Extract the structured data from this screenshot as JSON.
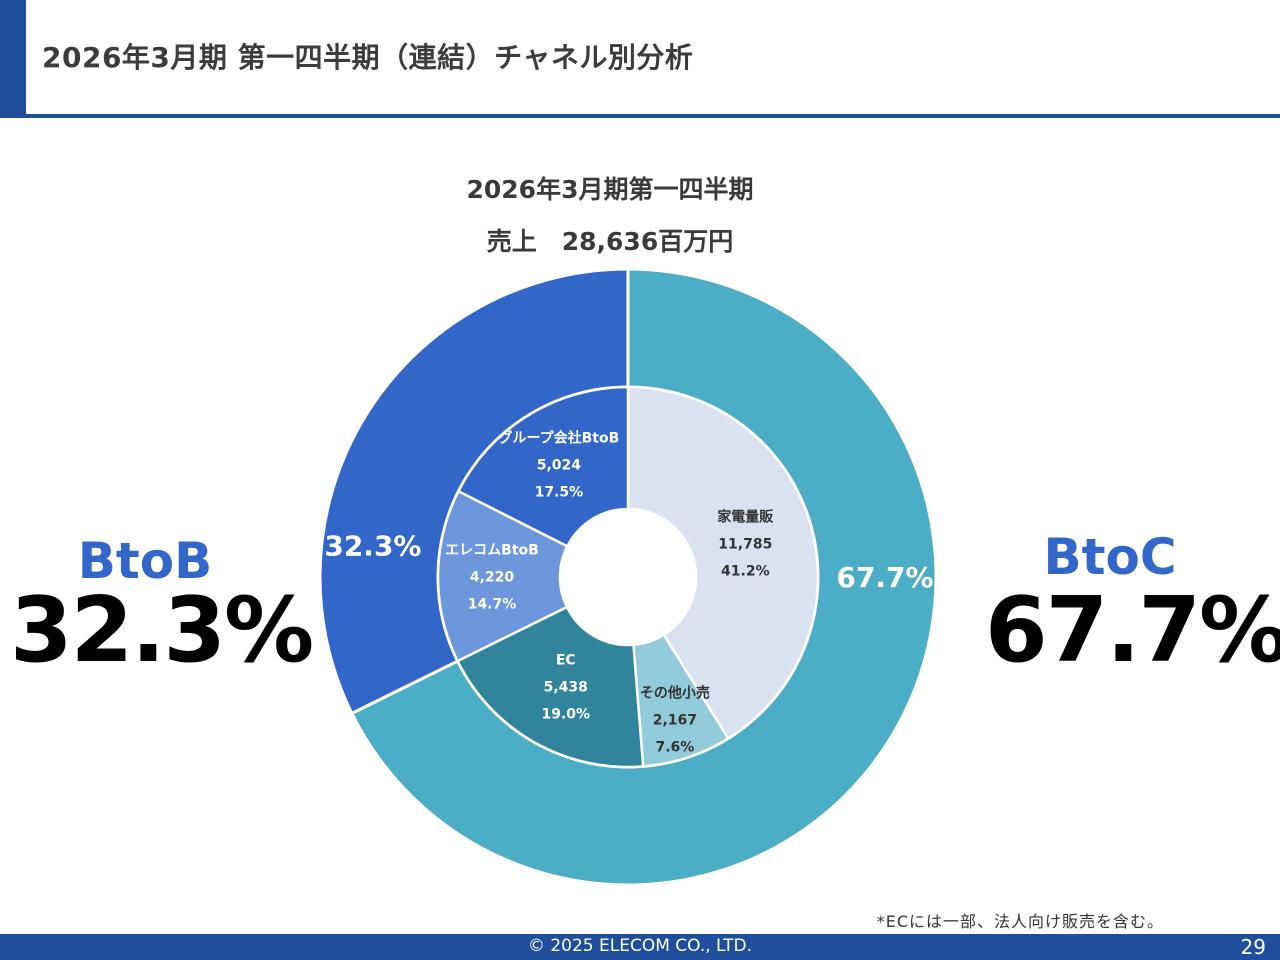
{
  "header": {
    "title": "2026年3月期 第一四半期（連結）チャネル別分析"
  },
  "chart_titles": {
    "line1": "2026年3月期第一四半期",
    "line2": "売上　28,636百万円"
  },
  "left_summary": {
    "name": "BtoB",
    "percent": "32.3%"
  },
  "right_summary": {
    "name": "BtoC",
    "percent": "67.7%"
  },
  "footnote": "*ECには一部、法人向け販売を含む。",
  "footer": {
    "copyright": "© 2025 ELECOM CO., LTD.",
    "page_number": "29"
  },
  "colors": {
    "header_blue": "#1f4e9c",
    "btob": "#3266c9",
    "btoc": "#4badc6",
    "kaden": "#dae2f2",
    "other_retail": "#92cbdc",
    "ec": "#30859c",
    "elecom_btob": "#6e96dc",
    "group_btob": "#3266c9"
  },
  "chart_data": {
    "type": "donut",
    "unit": "百万円",
    "total": 28636,
    "outer": [
      {
        "name": "BtoC",
        "label": "67.7%",
        "value": 67.7,
        "color": "#4badc6"
      },
      {
        "name": "BtoB",
        "label": "32.3%",
        "value": 32.3,
        "color": "#3266c9"
      }
    ],
    "inner": [
      {
        "name": "家電量販",
        "amount": "11,785",
        "share": "41.2%",
        "value": 11785,
        "color": "#dae2f2",
        "text_color": "#333333"
      },
      {
        "name": "その他小売",
        "amount": "2,167",
        "share": "7.6%",
        "value": 2167,
        "color": "#92cbdc",
        "text_color": "#333333"
      },
      {
        "name": "EC",
        "amount": "5,438",
        "share": "19.0%",
        "value": 5438,
        "color": "#30859c",
        "text_color": "#ffffff"
      },
      {
        "name": "エレコムBtoB",
        "amount": "4,220",
        "share": "14.7%",
        "value": 4220,
        "color": "#6e96dc",
        "text_color": "#ffffff"
      },
      {
        "name": "グループ会社BtoB",
        "amount": "5,024",
        "share": "17.5%",
        "value": 5024,
        "color": "#3266c9",
        "text_color": "#ffffff"
      }
    ]
  }
}
